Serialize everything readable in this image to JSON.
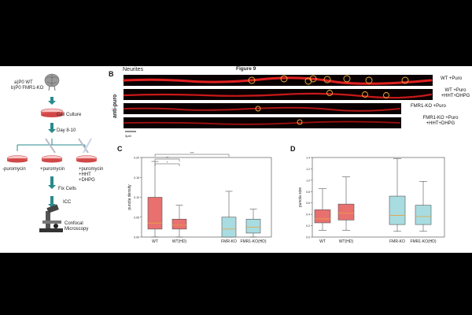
{
  "figure_title": "Figure 9",
  "panel_a": {
    "conditions": [
      "a)P0 WT",
      "b)P0 FMR1-KO"
    ],
    "steps": [
      "Cell Culture",
      "Day 8-10",
      "Fix Cells",
      "ICC",
      "Confocal Microscopy"
    ],
    "treatments": [
      "-puromycin",
      "+puromycin",
      "+puromycin +HHT +DHPG"
    ]
  },
  "panel_b": {
    "letter": "B",
    "header": "Neurites",
    "side_label": "anti-puro",
    "rows": [
      "WT +Puro",
      "WT +Puro +HHT+DHPG",
      "FMR1-KO +Puro",
      "FMR1-KO +Puro +HHT+DHPG"
    ],
    "scale_bar": "5μM"
  },
  "chart_data": [
    {
      "type": "box",
      "panel": "C",
      "categories": [
        "WT",
        "WT(HD)",
        "FMR-KO",
        "FMR1-KO(HD)"
      ],
      "ylabel": "puncta density",
      "ylim": [
        0,
        0.2
      ],
      "yticks": [
        "0.00",
        "0.05",
        "0.10",
        "0.15",
        "0.20"
      ],
      "colors": [
        "#e8706f",
        "#e8706f",
        "#a8dce0",
        "#a8dce0"
      ],
      "boxes": [
        {
          "whislo": 0.0,
          "q1": 0.02,
          "med": 0.035,
          "q3": 0.1,
          "whishi": 0.19
        },
        {
          "whislo": 0.0,
          "q1": 0.02,
          "med": 0.03,
          "q3": 0.045,
          "whishi": 0.08
        },
        {
          "whislo": 0.0,
          "q1": 0.0,
          "med": 0.02,
          "q3": 0.05,
          "whishi": 0.115
        },
        {
          "whislo": 0.0,
          "q1": 0.01,
          "med": 0.025,
          "q3": 0.045,
          "whishi": 0.07
        }
      ],
      "significance": [
        "*",
        "**",
        "***"
      ]
    },
    {
      "type": "box",
      "panel": "D",
      "categories": [
        "WT",
        "WT(HD)",
        "FMR-KO",
        "FMR1-KO(HD)"
      ],
      "ylabel": "puncta size",
      "ylim": [
        0,
        1.4
      ],
      "yticks": [
        "0.0",
        "0.2",
        "0.4",
        "0.6",
        "0.8",
        "1.0",
        "1.2",
        "1.4"
      ],
      "colors": [
        "#e8706f",
        "#e8706f",
        "#a8dce0",
        "#a8dce0"
      ],
      "boxes": [
        {
          "whislo": 0.12,
          "q1": 0.25,
          "med": 0.32,
          "q3": 0.48,
          "whishi": 0.85
        },
        {
          "whislo": 0.12,
          "q1": 0.3,
          "med": 0.42,
          "q3": 0.58,
          "whishi": 1.06
        },
        {
          "whislo": 0.1,
          "q1": 0.22,
          "med": 0.38,
          "q3": 0.72,
          "whishi": 1.38
        },
        {
          "whislo": 0.1,
          "q1": 0.22,
          "med": 0.36,
          "q3": 0.56,
          "whishi": 0.98
        }
      ]
    }
  ]
}
